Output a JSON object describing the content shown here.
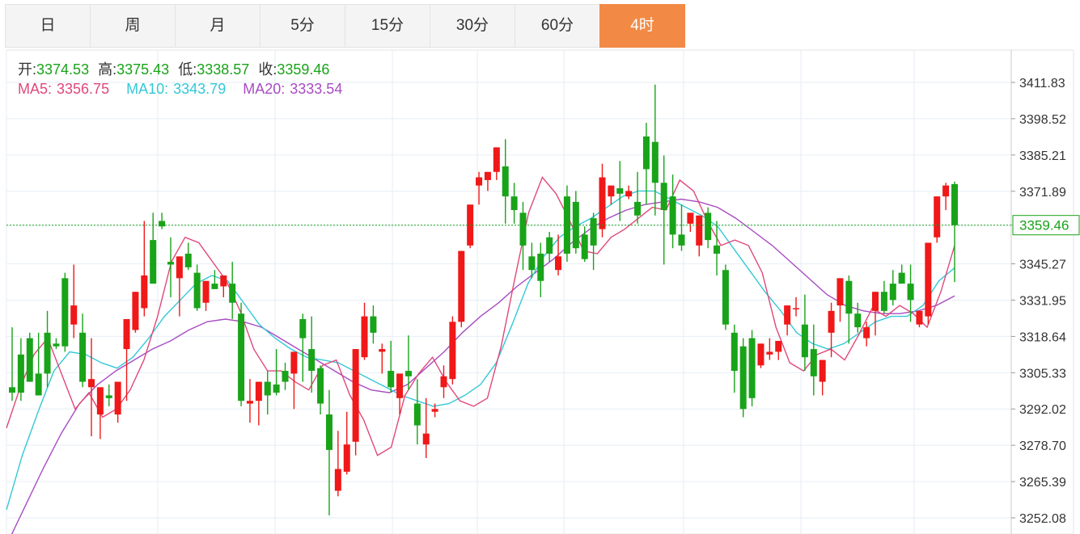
{
  "tabs": [
    {
      "label": "日"
    },
    {
      "label": "周"
    },
    {
      "label": "月"
    },
    {
      "label": "5分"
    },
    {
      "label": "15分"
    },
    {
      "label": "30分"
    },
    {
      "label": "60分"
    },
    {
      "label": "4时"
    }
  ],
  "active_tab": 7,
  "info": {
    "open_label": "开:",
    "open": "3374.53",
    "high_label": "高:",
    "high": "3375.43",
    "low_label": "低:",
    "low": "3338.57",
    "close_label": "收:",
    "close": "3359.46",
    "ma5_label": "MA5:",
    "ma5": "3356.75",
    "ma10_label": "MA10:",
    "ma10": "3343.79",
    "ma20_label": "MA20:",
    "ma20": "3333.54"
  },
  "colors": {
    "up": "#f01818",
    "down": "#19a319",
    "ma5": "#e0487a",
    "ma10": "#33c8d6",
    "ma20": "#a84cc2",
    "grid": "#e6eef5",
    "price_line": "#19a319"
  },
  "chart_data": {
    "type": "candlestick",
    "y_ticks": [
      "3411.83",
      "3398.52",
      "3385.21",
      "3371.89",
      "3359.46",
      "3345.27",
      "3331.95",
      "3318.64",
      "3305.33",
      "3292.02",
      "3278.70",
      "3265.39",
      "3252.08"
    ],
    "ylim": [
      3252.08,
      3411.83
    ],
    "current_price": 3359.46,
    "candles": [
      [
        3300,
        3322,
        3298,
        3295
      ],
      [
        3312,
        3318,
        3298,
        3295
      ],
      [
        3318,
        3320,
        3302,
        3305
      ],
      [
        3305,
        3320,
        3297,
        3303
      ],
      [
        3320,
        3328,
        3305,
        3300
      ],
      [
        3316,
        3318,
        3315,
        3314
      ],
      [
        3340,
        3342,
        3315,
        3313
      ],
      [
        3323,
        3345,
        3330,
        3318
      ],
      [
        3320,
        3327,
        3302,
        3300
      ],
      [
        3300,
        3318,
        3303,
        3282
      ],
      [
        3290,
        3293,
        3300,
        3281
      ],
      [
        3297,
        3301,
        3296,
        3293
      ],
      [
        3290,
        3301,
        3302,
        3287
      ],
      [
        3314,
        3317,
        3325,
        3295
      ],
      [
        3321,
        3327,
        3335,
        3320
      ],
      [
        3329,
        3361,
        3341,
        3326
      ],
      [
        3354,
        3364,
        3338,
        3339
      ],
      [
        3361,
        3364,
        3359,
        3358
      ],
      [
        3346,
        3355,
        3345,
        3333
      ],
      [
        3340,
        3344,
        3348,
        3326
      ],
      [
        3349,
        3353,
        3344,
        3343
      ],
      [
        3342,
        3345,
        3329,
        3328
      ],
      [
        3331,
        3336,
        3339,
        3328
      ],
      [
        3338,
        3343,
        3336,
        3336
      ],
      [
        3337,
        3341,
        3341,
        3333
      ],
      [
        3338,
        3346,
        3331,
        3325
      ],
      [
        3327,
        3331,
        3295,
        3293
      ],
      [
        3294,
        3303,
        3295,
        3287
      ],
      [
        3295,
        3300,
        3302,
        3286
      ],
      [
        3302,
        3306,
        3297,
        3290
      ],
      [
        3301,
        3314,
        3298,
        3297
      ],
      [
        3306,
        3309,
        3302,
        3299
      ],
      [
        3305,
        3309,
        3313,
        3292
      ],
      [
        3325,
        3327,
        3318,
        3302
      ],
      [
        3314,
        3326,
        3306,
        3298
      ],
      [
        3307,
        3308,
        3294,
        3290
      ],
      [
        3290,
        3299,
        3277,
        3253
      ],
      [
        3262,
        3284,
        3270,
        3260
      ],
      [
        3269,
        3291,
        3279,
        3268
      ],
      [
        3280,
        3307,
        3314,
        3275
      ],
      [
        3311,
        3331,
        3326,
        3310
      ],
      [
        3326,
        3330,
        3320,
        3316
      ],
      [
        3313,
        3316,
        3314,
        3305
      ],
      [
        3306,
        3317,
        3300,
        3298
      ],
      [
        3296,
        3300,
        3305,
        3290
      ],
      [
        3306,
        3319,
        3304,
        3299
      ],
      [
        3294,
        3303,
        3286,
        3279
      ],
      [
        3279,
        3296,
        3283,
        3274
      ],
      [
        3291,
        3294,
        3292,
        3289
      ],
      [
        3300,
        3308,
        3304,
        3296
      ],
      [
        3303,
        3326,
        3324,
        3301
      ],
      [
        3324,
        3337,
        3350,
        3322
      ],
      [
        3352,
        3358,
        3367,
        3351
      ],
      [
        3374,
        3379,
        3377,
        3367
      ],
      [
        3376,
        3378,
        3379,
        3372
      ],
      [
        3379,
        3381,
        3388,
        3376
      ],
      [
        3381,
        3391,
        3370,
        3360
      ],
      [
        3370,
        3375,
        3365,
        3360
      ],
      [
        3364,
        3368,
        3352,
        3343
      ],
      [
        3348,
        3353,
        3343,
        3340
      ],
      [
        3349,
        3353,
        3339,
        3333
      ],
      [
        3355,
        3357,
        3349,
        3346
      ],
      [
        3343,
        3356,
        3348,
        3341
      ],
      [
        3370,
        3374,
        3349,
        3346
      ],
      [
        3368,
        3372,
        3351,
        3349
      ],
      [
        3356,
        3359,
        3347,
        3346
      ],
      [
        3362,
        3364,
        3352,
        3343
      ],
      [
        3358,
        3382,
        3377,
        3355
      ],
      [
        3370,
        3373,
        3374,
        3367
      ],
      [
        3373,
        3383,
        3371,
        3361
      ],
      [
        3370,
        3374,
        3372,
        3369
      ],
      [
        3368,
        3379,
        3363,
        3360
      ],
      [
        3392,
        3397,
        3380,
        3367
      ],
      [
        3390,
        3411,
        3375,
        3363
      ],
      [
        3375,
        3385,
        3365,
        3345
      ],
      [
        3370,
        3378,
        3356,
        3351
      ],
      [
        3356,
        3367,
        3352,
        3350
      ],
      [
        3360,
        3363,
        3364,
        3357
      ],
      [
        3352,
        3363,
        3363,
        3348
      ],
      [
        3364,
        3366,
        3354,
        3351
      ],
      [
        3352,
        3361,
        3349,
        3341
      ],
      [
        3343,
        3345,
        3323,
        3321
      ],
      [
        3320,
        3323,
        3306,
        3298
      ],
      [
        3315,
        3318,
        3292,
        3289
      ],
      [
        3318,
        3321,
        3296,
        3293
      ],
      [
        3308,
        3313,
        3316,
        3307
      ],
      [
        3312,
        3318,
        3313,
        3310
      ],
      [
        3313,
        3316,
        3317,
        3310
      ],
      [
        3323,
        3328,
        3330,
        3319
      ],
      [
        3329,
        3333,
        3329,
        3326
      ],
      [
        3323,
        3334,
        3311,
        3306
      ],
      [
        3314,
        3323,
        3304,
        3297
      ],
      [
        3302,
        3307,
        3310,
        3297
      ],
      [
        3320,
        3331,
        3328,
        3311
      ],
      [
        3330,
        3335,
        3340,
        3324
      ],
      [
        3339,
        3341,
        3327,
        3316
      ],
      [
        3327,
        3331,
        3322,
        3320
      ],
      [
        3318,
        3324,
        3322,
        3315
      ],
      [
        3328,
        3331,
        3335,
        3319
      ],
      [
        3335,
        3339,
        3328,
        3327
      ],
      [
        3338,
        3343,
        3332,
        3330
      ],
      [
        3342,
        3345,
        3338,
        3338
      ],
      [
        3338,
        3345,
        3332,
        3324
      ],
      [
        3323,
        3326,
        3328,
        3322
      ],
      [
        3326,
        3331,
        3353,
        3323
      ],
      [
        3355,
        3361,
        3370,
        3353
      ],
      [
        3370,
        3375,
        3374,
        3365
      ],
      [
        3374.53,
        3375.43,
        3359.46,
        3338.57
      ]
    ],
    "ma5": [
      3285,
      3300,
      3312,
      3318,
      3305,
      3292,
      3298,
      3289,
      3292,
      3299,
      3310,
      3326,
      3346,
      3355,
      3353,
      3346,
      3339,
      3328,
      3314,
      3306,
      3306,
      3302,
      3299,
      3308,
      3310,
      3297,
      3288,
      3275,
      3278,
      3297,
      3305,
      3311,
      3302,
      3295,
      3293,
      3296,
      3315,
      3340,
      3364,
      3377,
      3371,
      3361,
      3350,
      3349,
      3355,
      3358,
      3362,
      3366,
      3365,
      3376,
      3372,
      3361,
      3352,
      3354,
      3352,
      3342,
      3322,
      3309,
      3306,
      3312,
      3314,
      3310,
      3319,
      3329,
      3326,
      3330,
      3327,
      3322,
      3335,
      3352
    ],
    "ma10": [
      3255,
      3275,
      3291,
      3306,
      3313,
      3312,
      3309,
      3307,
      3311,
      3318,
      3326,
      3332,
      3338,
      3341,
      3339,
      3331,
      3323,
      3318,
      3314,
      3311,
      3310,
      3309,
      3306,
      3303,
      3300,
      3297,
      3295,
      3293,
      3294,
      3297,
      3301,
      3309,
      3323,
      3338,
      3348,
      3355,
      3359,
      3362,
      3366,
      3370,
      3372,
      3372,
      3369,
      3366,
      3363,
      3359,
      3351,
      3343,
      3335,
      3328,
      3320,
      3316,
      3314,
      3316,
      3320,
      3324,
      3326,
      3326,
      3330,
      3339,
      3343.79
    ],
    "ma20": [
      3242,
      3256,
      3270,
      3283,
      3294,
      3301,
      3306,
      3310,
      3314,
      3317,
      3321,
      3324,
      3325,
      3324,
      3322,
      3318,
      3314,
      3310,
      3306,
      3302,
      3299,
      3298,
      3301,
      3307,
      3313,
      3320,
      3326,
      3331,
      3337,
      3342,
      3347,
      3353,
      3358,
      3362,
      3365,
      3367,
      3368,
      3369,
      3368,
      3366,
      3362,
      3357,
      3352,
      3346,
      3340,
      3334,
      3330,
      3328,
      3327,
      3327,
      3328,
      3330,
      3333.54
    ]
  }
}
